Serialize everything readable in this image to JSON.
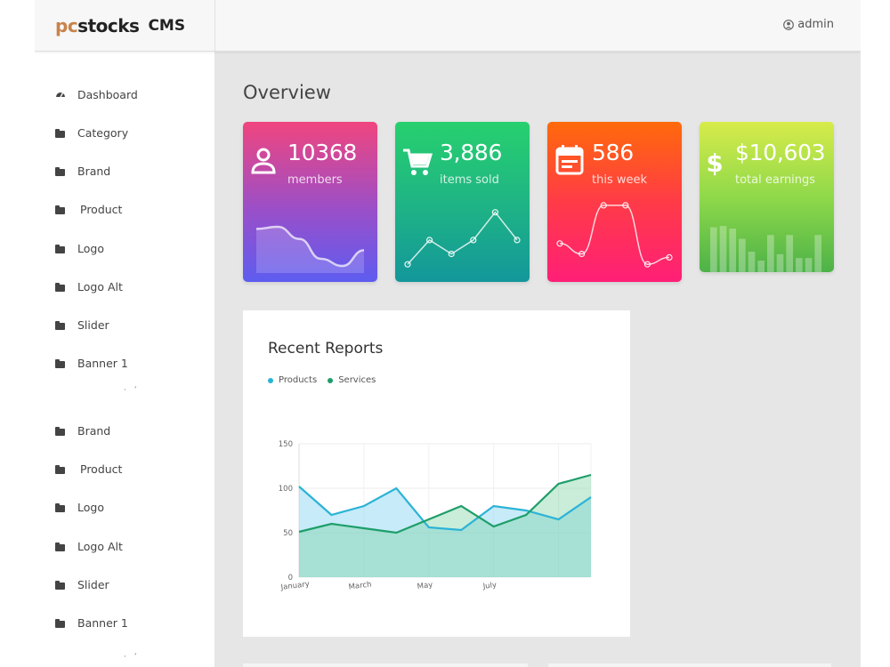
{
  "brand": {
    "logo_pc": "pc",
    "logo_stocks": "stocks",
    "cms": "CMS"
  },
  "header": {
    "user_label": "admin",
    "user_icon": "user-circle-icon"
  },
  "sidebar": {
    "items": [
      {
        "label": "Dashboard",
        "icon": "dashboard-gauge-icon"
      },
      {
        "label": "Category",
        "icon": "folder-icon"
      },
      {
        "label": "Brand",
        "icon": "folder-icon"
      },
      {
        "label": "Product",
        "icon": "folder-icon"
      },
      {
        "label": "Logo",
        "icon": "folder-icon"
      },
      {
        "label": "Logo Alt",
        "icon": "folder-icon"
      },
      {
        "label": "Slider",
        "icon": "folder-icon"
      },
      {
        "label": "Banner 1",
        "icon": "folder-icon"
      },
      {
        "label": "Brand",
        "icon": "folder-icon"
      },
      {
        "label": "Product",
        "icon": "folder-icon"
      },
      {
        "label": "Logo",
        "icon": "folder-icon"
      },
      {
        "label": "Logo Alt",
        "icon": "folder-icon"
      },
      {
        "label": "Slider",
        "icon": "folder-icon"
      },
      {
        "label": "Banner 1",
        "icon": "folder-icon"
      }
    ]
  },
  "main": {
    "title": "Overview",
    "stats": [
      {
        "value": "10368",
        "label": "members",
        "icon": "user-icon",
        "colors": [
          "#f0457e",
          "#5e5cf0"
        ]
      },
      {
        "value": "3,886",
        "label": "items sold",
        "icon": "cart-icon",
        "colors": [
          "#27d06e",
          "#13979a"
        ]
      },
      {
        "value": "586",
        "label": "this week",
        "icon": "calendar-icon",
        "colors": [
          "#ff6a0a",
          "#ff1f77"
        ]
      },
      {
        "value": "$10,603",
        "label": "total earnings",
        "icon": "dollar-icon",
        "colors": [
          "#d7eb4a",
          "#4db248"
        ]
      }
    ],
    "report": {
      "title": "Recent Reports",
      "legend": [
        {
          "name": "Products",
          "color": "#2bb3d6"
        },
        {
          "name": "Services",
          "color": "#1e9e6a"
        }
      ]
    }
  },
  "chart_data": {
    "type": "area",
    "title": "Recent Reports",
    "x": [
      "January",
      "",
      "March",
      "",
      "May",
      "",
      "July",
      "",
      "",
      ""
    ],
    "x_tick_labels": [
      "January",
      "March",
      "May",
      "July"
    ],
    "series": [
      {
        "name": "Products",
        "values": [
          102,
          70,
          80,
          100,
          56,
          53,
          80,
          75,
          65,
          90
        ]
      },
      {
        "name": "Services",
        "values": [
          51,
          60,
          55,
          50,
          65,
          80,
          57,
          70,
          105,
          115
        ]
      }
    ],
    "y_ticks": [
      0,
      50,
      100,
      150
    ],
    "ylim": [
      0,
      150
    ],
    "grid": true,
    "legend": "top-left"
  },
  "spark_charts": [
    {
      "type": "area-line",
      "values": [
        62,
        65,
        48,
        20,
        10,
        32
      ]
    },
    {
      "type": "line",
      "values": [
        10,
        45,
        25,
        45,
        85,
        45
      ]
    },
    {
      "type": "line",
      "values": [
        40,
        25,
        95,
        95,
        10,
        20
      ]
    },
    {
      "type": "bar",
      "values": [
        70,
        72,
        68,
        52,
        32,
        18,
        58,
        28,
        58,
        22,
        22,
        58
      ]
    }
  ]
}
